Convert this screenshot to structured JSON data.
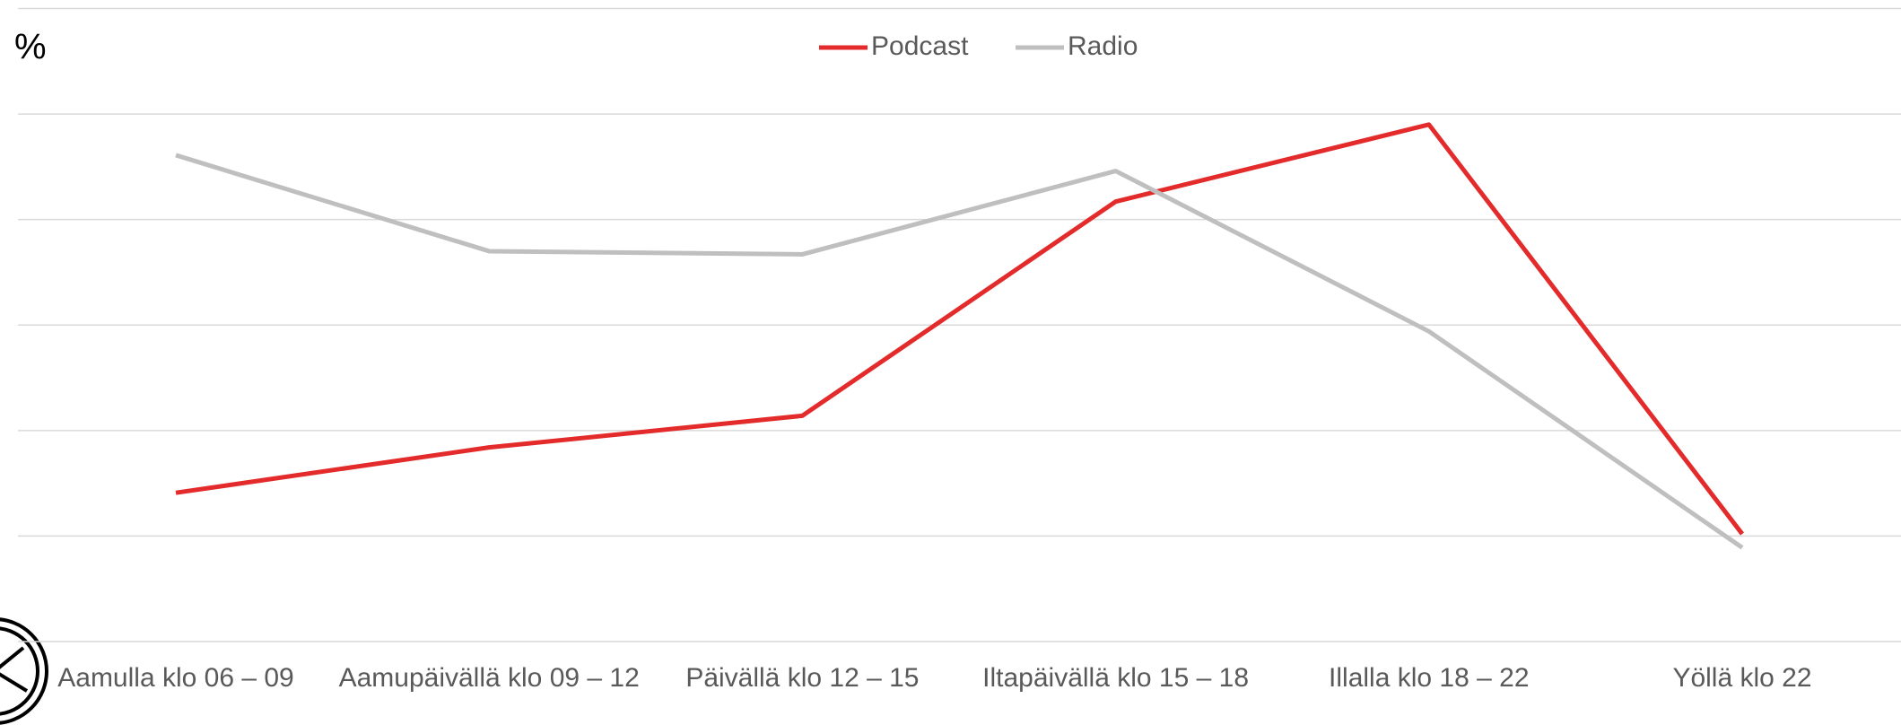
{
  "chart_data": {
    "type": "line",
    "y_axis_label": "%",
    "categories": [
      "Aamulla klo 06 – 09",
      "Aamupäivällä klo 09 – 12",
      "Päivällä klo 12 – 15",
      "Iltapäivällä klo 15 – 18",
      "Illalla klo 18 – 22",
      "Yöllä klo 22"
    ],
    "series": [
      {
        "name": "Podcast",
        "color": "#e32b2b",
        "values": [
          14.1,
          18.4,
          21.4,
          41.7,
          49.0,
          10.2
        ]
      },
      {
        "name": "Radio",
        "color": "#bfbfbf",
        "values": [
          46.1,
          37.0,
          36.7,
          44.6,
          29.4,
          8.9
        ]
      }
    ],
    "ylim": [
      0,
      60
    ],
    "yticks": [
      0,
      10,
      20,
      30,
      40,
      50,
      60
    ],
    "grid": true,
    "legend": "top"
  }
}
